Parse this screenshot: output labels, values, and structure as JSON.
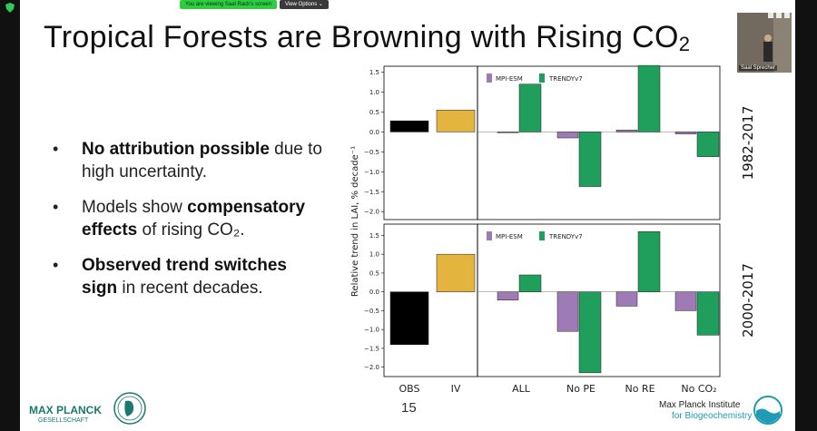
{
  "screen_share": {
    "notice": "You are viewing Saal Rack's screen",
    "options_label": "View Options ⌄"
  },
  "slide": {
    "title_main": "Tropical Forests are Browning with Rising CO",
    "title_sub": "2",
    "bullets": [
      {
        "bold": "No attribution possible",
        "rest": " due to high uncertainty."
      },
      {
        "pre": "Models show ",
        "bold": "compensatory effects",
        "rest": " of rising CO₂."
      },
      {
        "bold": "Observed trend switches sign",
        "rest": " in recent decades."
      }
    ],
    "page_number": "15",
    "mpg_logo_line1": "MAX PLANCK",
    "mpg_logo_line2": "GESELLSCHAFT",
    "institute_line1": "Max Planck Institute",
    "institute_line2": "for Biogeochemistry"
  },
  "video": {
    "participant_name": "Saal Sprecher"
  },
  "colors": {
    "obs": "#000000",
    "iv": "#e3b53f",
    "mpi": "#9e7bb5",
    "trendy": "#1f9e5c"
  },
  "chart_data": {
    "type": "bar",
    "categories": [
      "OBS",
      "IV",
      "ALL",
      "No PE",
      "No RE",
      "No CO₂"
    ],
    "ylabel": "Relative trend in LAI, % decade⁻¹",
    "legend": [
      "MPI-ESM",
      "TRENDYv7"
    ],
    "panels": [
      {
        "period": "1982-2017",
        "ylim": [
          -2.2,
          1.65
        ],
        "yticks": [
          "1.5",
          "1.0",
          "0.5",
          "0.0",
          "−0.5",
          "−1.0",
          "−1.5",
          "−2.0"
        ],
        "obs": 0.28,
        "iv": 0.55,
        "mpi": [
          0.0,
          -0.15,
          0.05,
          -0.05
        ],
        "trendy": [
          1.2,
          -1.37,
          1.67,
          -0.62
        ]
      },
      {
        "period": "2000-2017",
        "ylim": [
          -2.25,
          1.8
        ],
        "yticks": [
          "1.5",
          "1.0",
          "0.5",
          "0.0",
          "−0.5",
          "−1.0",
          "−1.5",
          "−2.0"
        ],
        "obs": -1.4,
        "iv": 1.0,
        "mpi": [
          -0.22,
          -1.05,
          -0.38,
          -0.5
        ],
        "trendy": [
          0.45,
          -2.15,
          1.6,
          -1.15
        ]
      }
    ]
  }
}
